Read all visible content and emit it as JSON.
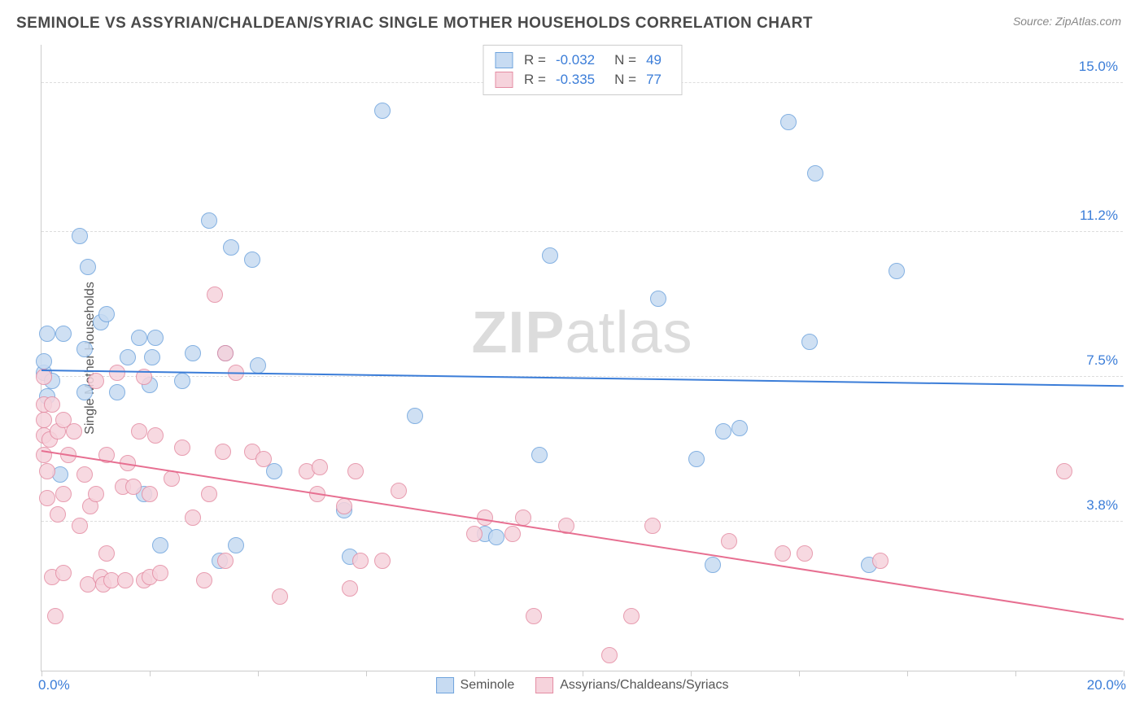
{
  "title": "SEMINOLE VS ASSYRIAN/CHALDEAN/SYRIAC SINGLE MOTHER HOUSEHOLDS CORRELATION CHART",
  "source": "Source: ZipAtlas.com",
  "watermark_bold": "ZIP",
  "watermark_light": "atlas",
  "chart": {
    "type": "scatter",
    "y_axis_title": "Single Mother Households",
    "xlim": [
      0.0,
      20.0
    ],
    "ylim": [
      0.0,
      16.0
    ],
    "x_min_label": "0.0%",
    "x_max_label": "20.0%",
    "x_label_color": "#3b7dd8",
    "ytick_values": [
      3.8,
      7.5,
      11.2,
      15.0
    ],
    "ytick_labels": [
      "3.8%",
      "7.5%",
      "11.2%",
      "15.0%"
    ],
    "ytick_color": "#3b7dd8",
    "xtick_positions": [
      0,
      2,
      4,
      6,
      8,
      10,
      12,
      14,
      16,
      18,
      20
    ],
    "grid_color": "#dddddd",
    "background_color": "#ffffff",
    "series": [
      {
        "name": "Seminole",
        "marker_fill": "#c7dbf2",
        "marker_stroke": "#6fa4dd",
        "marker_radius": 10,
        "trend_color": "#3b7dd8",
        "trend_y_start": 7.65,
        "trend_y_end": 7.25,
        "R": "-0.032",
        "N": "49",
        "points": [
          [
            0.05,
            7.6
          ],
          [
            0.05,
            7.9
          ],
          [
            0.1,
            7.0
          ],
          [
            0.1,
            8.6
          ],
          [
            0.2,
            7.4
          ],
          [
            0.35,
            5.0
          ],
          [
            0.4,
            8.6
          ],
          [
            0.7,
            11.1
          ],
          [
            0.8,
            7.1
          ],
          [
            0.8,
            8.2
          ],
          [
            0.85,
            10.3
          ],
          [
            1.1,
            8.9
          ],
          [
            1.2,
            9.1
          ],
          [
            1.4,
            7.1
          ],
          [
            1.6,
            8.0
          ],
          [
            1.8,
            8.5
          ],
          [
            1.9,
            4.5
          ],
          [
            2.0,
            7.3
          ],
          [
            2.05,
            8.0
          ],
          [
            2.1,
            8.5
          ],
          [
            2.2,
            3.2
          ],
          [
            2.6,
            7.4
          ],
          [
            2.8,
            8.1
          ],
          [
            3.1,
            11.5
          ],
          [
            3.3,
            2.8
          ],
          [
            3.4,
            8.1
          ],
          [
            3.5,
            10.8
          ],
          [
            3.6,
            3.2
          ],
          [
            3.9,
            10.5
          ],
          [
            4.0,
            7.8
          ],
          [
            4.3,
            5.1
          ],
          [
            5.6,
            4.1
          ],
          [
            5.7,
            2.9
          ],
          [
            6.3,
            14.3
          ],
          [
            6.9,
            6.5
          ],
          [
            8.2,
            3.5
          ],
          [
            8.4,
            3.4
          ],
          [
            9.2,
            5.5
          ],
          [
            9.4,
            10.6
          ],
          [
            11.4,
            9.5
          ],
          [
            12.1,
            5.4
          ],
          [
            12.4,
            2.7
          ],
          [
            12.6,
            6.1
          ],
          [
            12.9,
            6.2
          ],
          [
            13.8,
            14.0
          ],
          [
            14.2,
            8.4
          ],
          [
            14.3,
            12.7
          ],
          [
            15.3,
            2.7
          ],
          [
            15.8,
            10.2
          ]
        ]
      },
      {
        "name": "Assyrians/Chaldeans/Syriacs",
        "marker_fill": "#f6d3dc",
        "marker_stroke": "#e48ca3",
        "marker_radius": 10,
        "trend_color": "#e76f91",
        "trend_y_start": 5.6,
        "trend_y_end": 1.3,
        "R": "-0.335",
        "N": "77",
        "points": [
          [
            0.05,
            5.5
          ],
          [
            0.05,
            6.0
          ],
          [
            0.05,
            6.4
          ],
          [
            0.05,
            6.8
          ],
          [
            0.05,
            7.5
          ],
          [
            0.1,
            4.4
          ],
          [
            0.1,
            5.1
          ],
          [
            0.15,
            5.9
          ],
          [
            0.2,
            2.4
          ],
          [
            0.2,
            6.8
          ],
          [
            0.25,
            1.4
          ],
          [
            0.3,
            4.0
          ],
          [
            0.3,
            6.1
          ],
          [
            0.4,
            2.5
          ],
          [
            0.4,
            4.5
          ],
          [
            0.4,
            6.4
          ],
          [
            0.5,
            5.5
          ],
          [
            0.6,
            6.1
          ],
          [
            0.7,
            3.7
          ],
          [
            0.8,
            5.0
          ],
          [
            0.85,
            2.2
          ],
          [
            0.9,
            4.2
          ],
          [
            1.0,
            4.5
          ],
          [
            1.0,
            7.4
          ],
          [
            1.1,
            2.4
          ],
          [
            1.15,
            2.2
          ],
          [
            1.2,
            3.0
          ],
          [
            1.2,
            5.5
          ],
          [
            1.3,
            2.3
          ],
          [
            1.4,
            7.6
          ],
          [
            1.5,
            4.7
          ],
          [
            1.55,
            2.3
          ],
          [
            1.6,
            5.3
          ],
          [
            1.7,
            4.7
          ],
          [
            1.8,
            6.1
          ],
          [
            1.9,
            2.3
          ],
          [
            1.9,
            7.5
          ],
          [
            2.0,
            4.5
          ],
          [
            2.0,
            2.4
          ],
          [
            2.1,
            6.0
          ],
          [
            2.2,
            2.5
          ],
          [
            2.4,
            4.9
          ],
          [
            2.6,
            5.7
          ],
          [
            2.8,
            3.9
          ],
          [
            3.0,
            2.3
          ],
          [
            3.1,
            4.5
          ],
          [
            3.2,
            9.6
          ],
          [
            3.35,
            5.6
          ],
          [
            3.4,
            2.8
          ],
          [
            3.4,
            8.1
          ],
          [
            3.6,
            7.6
          ],
          [
            3.9,
            5.6
          ],
          [
            4.1,
            5.4
          ],
          [
            4.4,
            1.9
          ],
          [
            4.9,
            5.1
          ],
          [
            5.1,
            4.5
          ],
          [
            5.15,
            5.2
          ],
          [
            5.6,
            4.2
          ],
          [
            5.7,
            2.1
          ],
          [
            5.8,
            5.1
          ],
          [
            5.9,
            2.8
          ],
          [
            6.3,
            2.8
          ],
          [
            6.6,
            4.6
          ],
          [
            8.0,
            3.5
          ],
          [
            8.2,
            3.9
          ],
          [
            8.7,
            3.5
          ],
          [
            8.9,
            3.9
          ],
          [
            9.1,
            1.4
          ],
          [
            9.7,
            3.7
          ],
          [
            10.5,
            0.4
          ],
          [
            10.9,
            1.4
          ],
          [
            11.3,
            3.7
          ],
          [
            12.7,
            3.3
          ],
          [
            13.7,
            3.0
          ],
          [
            14.1,
            3.0
          ],
          [
            15.5,
            2.8
          ],
          [
            18.9,
            5.1
          ]
        ]
      }
    ]
  },
  "legend_top": {
    "labels": {
      "R": "R =",
      "N": "N ="
    }
  },
  "legend_bottom": {
    "items": [
      "Seminole",
      "Assyrians/Chaldeans/Syriacs"
    ]
  }
}
